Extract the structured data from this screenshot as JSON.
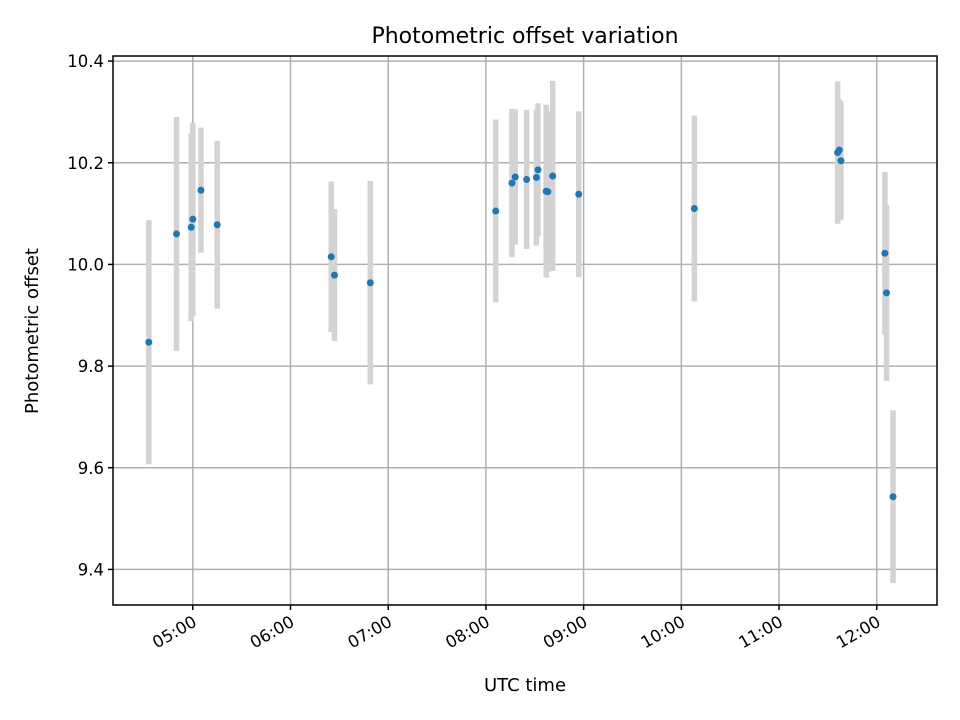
{
  "chart_data": {
    "type": "scatter",
    "title": "Photometric offset variation",
    "xlabel": "UTC time",
    "ylabel": "Photometric offset",
    "x_unit": "hours (UTC)",
    "xlim": [
      "04:11",
      "12:37"
    ],
    "ylim": [
      9.33,
      10.41
    ],
    "grid": true,
    "x_ticks": [
      "05:00",
      "06:00",
      "07:00",
      "08:00",
      "09:00",
      "10:00",
      "11:00",
      "12:00"
    ],
    "y_ticks": [
      "9.4",
      "9.6",
      "9.8",
      "10.0",
      "10.2",
      "10.4"
    ],
    "point_color": "#1f77b4",
    "errorbar_color": "#d3d3d3",
    "series": [
      {
        "points": [
          {
            "t": "04:33",
            "y": 9.847,
            "err": 0.24
          },
          {
            "t": "04:50",
            "y": 10.06,
            "err": 0.23
          },
          {
            "t": "04:59",
            "y": 10.073,
            "err": 0.185
          },
          {
            "t": "05:00",
            "y": 10.089,
            "err": 0.19
          },
          {
            "t": "05:05",
            "y": 10.146,
            "err": 0.123
          },
          {
            "t": "05:15",
            "y": 10.078,
            "err": 0.165
          },
          {
            "t": "06:25",
            "y": 10.015,
            "err": 0.148
          },
          {
            "t": "06:27",
            "y": 9.979,
            "err": 0.13
          },
          {
            "t": "06:49",
            "y": 9.964,
            "err": 0.2
          },
          {
            "t": "08:06",
            "y": 10.105,
            "err": 0.18
          },
          {
            "t": "08:16",
            "y": 10.16,
            "err": 0.146
          },
          {
            "t": "08:18",
            "y": 10.172,
            "err": 0.133
          },
          {
            "t": "08:25",
            "y": 10.167,
            "err": 0.137
          },
          {
            "t": "08:31",
            "y": 10.171,
            "err": 0.134
          },
          {
            "t": "08:32",
            "y": 10.186,
            "err": 0.131
          },
          {
            "t": "08:37",
            "y": 10.144,
            "err": 0.17
          },
          {
            "t": "08:38",
            "y": 10.143,
            "err": 0.158
          },
          {
            "t": "08:41",
            "y": 10.174,
            "err": 0.187
          },
          {
            "t": "08:57",
            "y": 10.138,
            "err": 0.163
          },
          {
            "t": "10:08",
            "y": 10.11,
            "err": 0.183
          },
          {
            "t": "11:36",
            "y": 10.22,
            "err": 0.14
          },
          {
            "t": "11:37",
            "y": 10.225,
            "err": 0.1
          },
          {
            "t": "11:38",
            "y": 10.204,
            "err": 0.117
          },
          {
            "t": "12:05",
            "y": 10.022,
            "err": 0.16
          },
          {
            "t": "12:06",
            "y": 9.944,
            "err": 0.173
          },
          {
            "t": "12:10",
            "y": 9.543,
            "err": 0.17
          }
        ]
      }
    ]
  }
}
